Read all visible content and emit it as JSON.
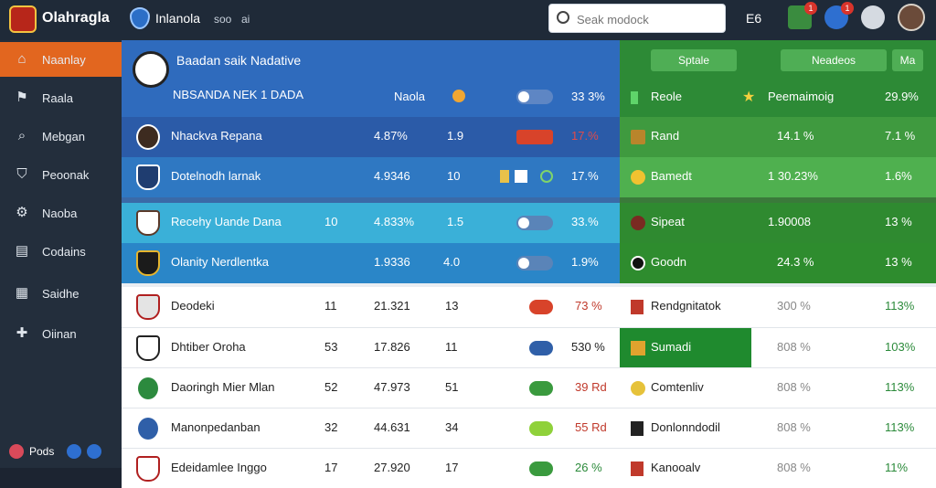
{
  "topbar": {
    "brand": "Olahragla",
    "org": "Inlanola",
    "meta1": "soo",
    "meta2": "ai",
    "search_placeholder": "Seak modock",
    "tb_text": "E6",
    "notif1_badge": "1",
    "notif2_badge": "1"
  },
  "sidebar": {
    "items": [
      {
        "label": "Naanlay",
        "icon": "home-icon"
      },
      {
        "label": "Raala",
        "icon": "flag-icon"
      },
      {
        "label": "Mebgan",
        "icon": "search-icon"
      },
      {
        "label": "Peoonak",
        "icon": "shield-icon"
      },
      {
        "label": "Naoba",
        "icon": "settings-icon"
      },
      {
        "label": "Codains",
        "icon": "chart-icon"
      },
      {
        "label": "Saidhe",
        "icon": "grid-icon"
      },
      {
        "label": "Oiinan",
        "icon": "plus-icon"
      }
    ],
    "footer": "Pods"
  },
  "header": {
    "title": "Baadan saik Nadative",
    "subtitle": "NBSANDA NEK 1 DADA",
    "col_label": "Naola",
    "col_pct": "33 3%",
    "right_btn1": "Sptale",
    "right_btn2": "Neadeos",
    "right_btn3": "Ma",
    "right_col1": "Reole",
    "right_col2": "Peemaimoig",
    "right_col3": "29.9%"
  },
  "rows": [
    {
      "name": "Nhackva Repana",
      "rank": "",
      "value": "4.87%",
      "num": "1.9",
      "pct": "17.%"
    },
    {
      "name": "Dotelnodh larnak",
      "rank": "",
      "value": "4.9346",
      "num": "10",
      "pct": "17.%"
    },
    {
      "name": "Recehy Uande Dana",
      "rank": "10",
      "value": "4.833%",
      "num": "1.5",
      "pct": "33.%"
    },
    {
      "name": "Olanity Nerdlentka",
      "rank": "",
      "value": "1.9336",
      "num": "4.0",
      "pct": "1.9%"
    },
    {
      "name": "Deodeki",
      "rank": "11",
      "value": "21.321",
      "num": "13",
      "pct": "73 %"
    },
    {
      "name": "Dhtiber Oroha",
      "rank": "53",
      "value": "17.826",
      "num": "11",
      "pct": "530 %"
    },
    {
      "name": "Daoringh Mier Mlan",
      "rank": "52",
      "value": "47.973",
      "num": "51",
      "pct": "39 Rd"
    },
    {
      "name": "Manonpedanban",
      "rank": "32",
      "value": "44.631",
      "num": "34",
      "pct": "55 Rd"
    },
    {
      "name": "Edeidamlee Inggo",
      "rank": "17",
      "value": "27.920",
      "num": "17",
      "pct": "26 %"
    }
  ],
  "right_rows": [
    {
      "name": "Rand",
      "v1": "14.1 %",
      "v2": "7.1 %"
    },
    {
      "name": "Bamedt",
      "v1": "1 30.23%",
      "v2": "1.6%"
    },
    {
      "name": "Sipeat",
      "v1": "1.90008",
      "v2": "13 %"
    },
    {
      "name": "Goodn",
      "v1": "24.3 %",
      "v2": "13 %"
    },
    {
      "name": "Rendgnitatok",
      "v1": "300 %",
      "v2": "113%"
    },
    {
      "name": "Sumadi",
      "v1": "808 %",
      "v2": "103%"
    },
    {
      "name": "Comtenliv",
      "v1": "808 %",
      "v2": "113%"
    },
    {
      "name": "Donlonndodil",
      "v1": "808 %",
      "v2": "113%"
    },
    {
      "name": "Kanooalv",
      "v1": "808 %",
      "v2": "11%"
    }
  ]
}
